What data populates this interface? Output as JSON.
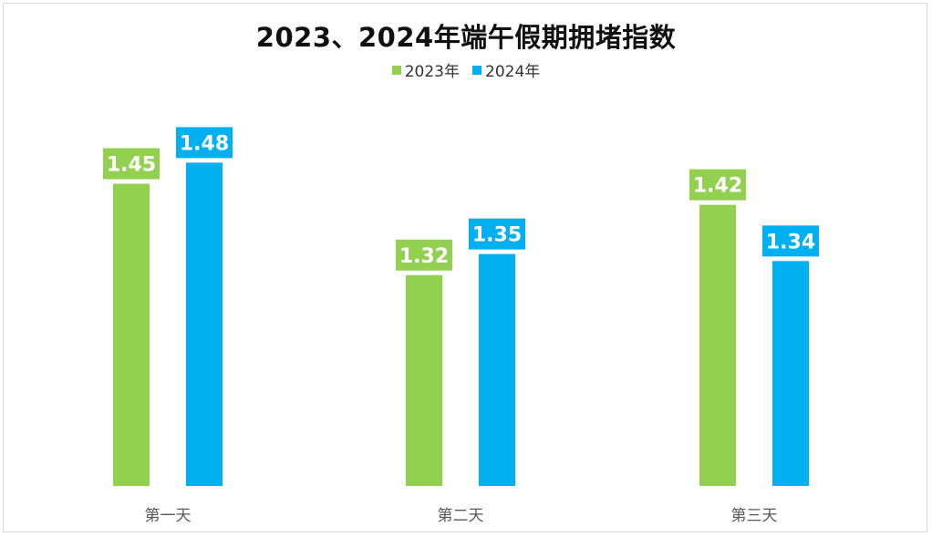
{
  "chart_data": {
    "type": "bar",
    "title": "2023、2024年端午假期拥堵指数",
    "categories": [
      "第一天",
      "第二天",
      "第三天"
    ],
    "series": [
      {
        "name": "2023年",
        "color": "#92d050",
        "values": [
          1.45,
          1.32,
          1.42
        ]
      },
      {
        "name": "2024年",
        "color": "#00b0f0",
        "values": [
          1.48,
          1.35,
          1.34
        ]
      }
    ],
    "value_labels": [
      [
        "1.45",
        "1.32",
        "1.42"
      ],
      [
        "1.48",
        "1.35",
        "1.34"
      ]
    ],
    "ylim": [
      1.02,
      1.5
    ],
    "grid": false,
    "legend_position": "top"
  }
}
